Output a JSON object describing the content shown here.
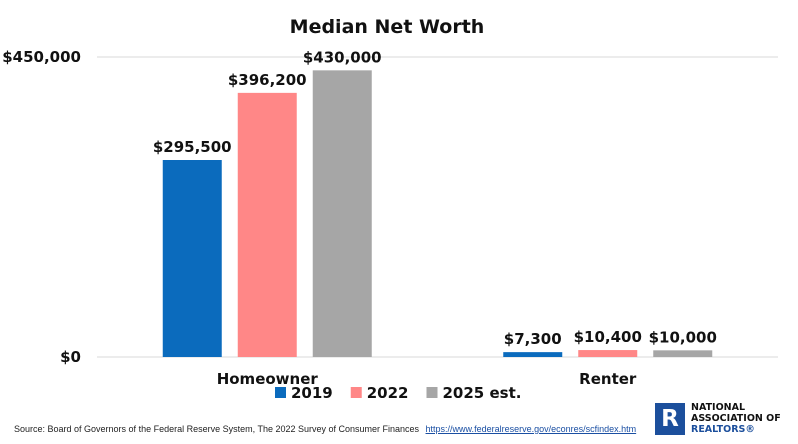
{
  "chart_data": {
    "type": "bar",
    "title": "Median Net Worth",
    "categories": [
      "Homeowner",
      "Renter"
    ],
    "series": [
      {
        "name": "2019",
        "color": "#0b6bbd",
        "values": [
          295500,
          7300
        ],
        "labels": [
          "$295,500",
          "$7,300"
        ]
      },
      {
        "name": "2022",
        "color": "#ff8787",
        "values": [
          396200,
          10400
        ],
        "labels": [
          "$396,200",
          "$10,400"
        ]
      },
      {
        "name": "2025 est.",
        "color": "#a6a6a6",
        "values": [
          430000,
          10000
        ],
        "labels": [
          "$430,000",
          "$10,000"
        ]
      }
    ],
    "ylim": [
      0,
      450000
    ],
    "yticks": [
      0,
      450000
    ],
    "ytick_labels": [
      "$0",
      "$450,000"
    ],
    "grid": true,
    "legend_position": "bottom"
  },
  "source": {
    "text": "Source: Board of Governors of the Federal Reserve System, The 2022 Survey of Consumer Finances",
    "link": "https://www.federalreserve.gov/econres/scfindex.htm"
  },
  "logo": {
    "mark": "R",
    "line1": "NATIONAL",
    "line2": "ASSOCIATION OF",
    "line3": "REALTORS®"
  }
}
